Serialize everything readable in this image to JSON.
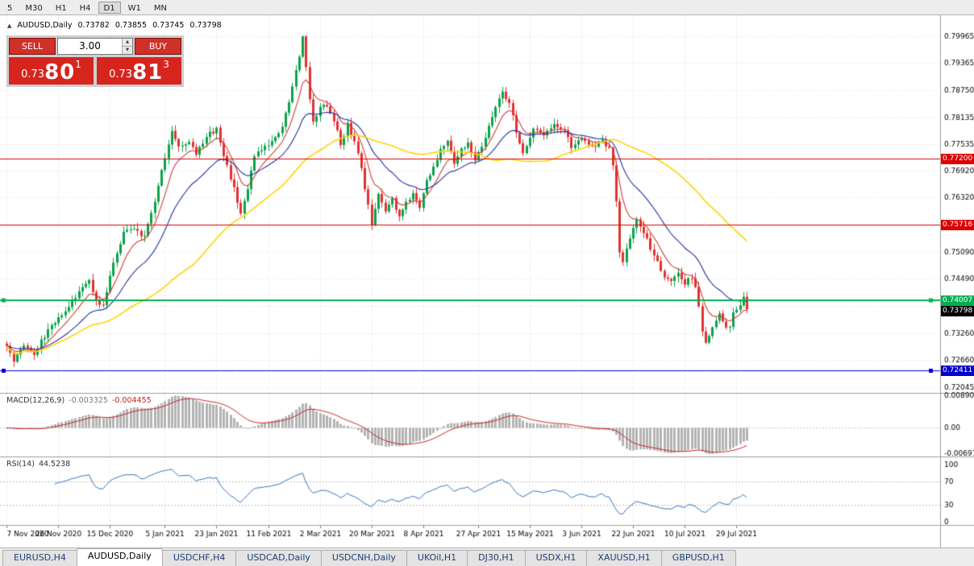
{
  "toolbar": {
    "timeframes": [
      "5",
      "M30",
      "H1",
      "H4",
      "D1",
      "W1",
      "MN"
    ],
    "active": "D1"
  },
  "header": {
    "symbol": "AUDUSD,Daily",
    "open": "0.73782",
    "high": "0.73855",
    "low": "0.73745",
    "close": "0.73798"
  },
  "trade_panel": {
    "sell_label": "SELL",
    "buy_label": "BUY",
    "volume": "3.00",
    "sell_price": {
      "prefix": "0.73",
      "pips": "80",
      "sup": "1"
    },
    "buy_price": {
      "prefix": "0.73",
      "pips": "81",
      "sup": "3"
    }
  },
  "indicators": {
    "macd": {
      "label": "MACD(12,26,9)",
      "value1": "-0.003325",
      "value2": "-0.004455",
      "axis_labels": [
        "0.00890",
        "0.00",
        "-0.00697"
      ]
    },
    "rsi": {
      "label": "RSI(14)",
      "value": "44.5238",
      "axis_labels": [
        "100",
        "70",
        "30",
        "0"
      ],
      "levels": [
        70,
        30
      ]
    }
  },
  "tabs": [
    {
      "label": "EURUSD,H4"
    },
    {
      "label": "AUDUSD,Daily",
      "active": true
    },
    {
      "label": "USDCHF,H4"
    },
    {
      "label": "USDCAD,Daily"
    },
    {
      "label": "USDCNH,Daily"
    },
    {
      "label": "UKOil,H1"
    },
    {
      "label": "DJ30,H1"
    },
    {
      "label": "USDX,H1"
    },
    {
      "label": "XAUUSD,H1"
    },
    {
      "label": "GBPUSD,H1"
    }
  ],
  "chart_data": {
    "type": "candlestick",
    "symbol": "AUDUSD",
    "timeframe": "Daily",
    "num_candles": 216,
    "last_close": 0.73798,
    "y_axis_labels": [
      "0.79965",
      "0.79365",
      "0.78750",
      "0.78135",
      "0.77535",
      "0.76920",
      "0.76320",
      "0.75705",
      "0.75090",
      "0.74490",
      "0.73875",
      "0.73260",
      "0.72660",
      "0.72045"
    ],
    "x_axis": [
      {
        "i": 0,
        "label": "7 Nov 2020"
      },
      {
        "i": 15,
        "label": "26 Nov 2020"
      },
      {
        "i": 30,
        "label": "15 Dec 2020"
      },
      {
        "i": 46,
        "label": "5 Jan 2021"
      },
      {
        "i": 61,
        "label": "23 Jan 2021"
      },
      {
        "i": 76,
        "label": "11 Feb 2021"
      },
      {
        "i": 91,
        "label": "2 Mar 2021"
      },
      {
        "i": 106,
        "label": "20 Mar 2021"
      },
      {
        "i": 121,
        "label": "8 Apr 2021"
      },
      {
        "i": 137,
        "label": "27 Apr 2021"
      },
      {
        "i": 152,
        "label": "15 May 2021"
      },
      {
        "i": 167,
        "label": "3 Jun 2021"
      },
      {
        "i": 182,
        "label": "22 Jun 2021"
      },
      {
        "i": 197,
        "label": "10 Jul 2021"
      },
      {
        "i": 212,
        "label": "29 Jul 2021"
      }
    ],
    "hlines": [
      {
        "value": 0.772,
        "label": "0.77200",
        "color": "#dd0000",
        "width": 1,
        "handles": false
      },
      {
        "value": 0.75716,
        "label": "0.75716",
        "color": "#dd0000",
        "width": 1,
        "handles": false
      },
      {
        "value": 0.74007,
        "label": "0.74007",
        "color": "#00b050",
        "width": 2,
        "handles": true
      },
      {
        "value": 0.72411,
        "label": "0.72411",
        "color": "#0000cc",
        "width": 1,
        "handles": true
      }
    ],
    "current_price": {
      "value": 0.73798,
      "label": "0.73798",
      "color": "#000000"
    },
    "moving_averages": [
      {
        "type": "ema",
        "period": 8,
        "color": "#d23b32"
      },
      {
        "type": "ema",
        "period": 21,
        "color": "#2431a0"
      },
      {
        "type": "sma",
        "period": 55,
        "color": "#ffd400"
      }
    ],
    "colors": {
      "bull": "#0aa24a",
      "bear": "#e03230",
      "macd_hist": "#b3b3b3",
      "macd_signal": "#cc2222",
      "rsi_line": "#3273b8"
    },
    "price_anchors": [
      [
        0,
        0.7292
      ],
      [
        2,
        0.7263
      ],
      [
        5,
        0.7298
      ],
      [
        8,
        0.7281
      ],
      [
        12,
        0.7332
      ],
      [
        15,
        0.7358
      ],
      [
        18,
        0.7388
      ],
      [
        21,
        0.7416
      ],
      [
        24,
        0.7446
      ],
      [
        26,
        0.7398
      ],
      [
        28,
        0.739
      ],
      [
        31,
        0.7482
      ],
      [
        34,
        0.7552
      ],
      [
        37,
        0.7558
      ],
      [
        40,
        0.7545
      ],
      [
        43,
        0.7625
      ],
      [
        46,
        0.7722
      ],
      [
        48,
        0.7786
      ],
      [
        50,
        0.7744
      ],
      [
        53,
        0.7762
      ],
      [
        55,
        0.7728
      ],
      [
        58,
        0.7772
      ],
      [
        61,
        0.7786
      ],
      [
        63,
        0.7724
      ],
      [
        66,
        0.7652
      ],
      [
        68,
        0.7598
      ],
      [
        70,
        0.7655
      ],
      [
        72,
        0.773
      ],
      [
        75,
        0.7748
      ],
      [
        78,
        0.7768
      ],
      [
        80,
        0.7794
      ],
      [
        83,
        0.788
      ],
      [
        85,
        0.7952
      ],
      [
        86,
        0.7994
      ],
      [
        88,
        0.7858
      ],
      [
        89,
        0.78
      ],
      [
        91,
        0.7842
      ],
      [
        93,
        0.7838
      ],
      [
        95,
        0.7806
      ],
      [
        97,
        0.7752
      ],
      [
        99,
        0.7796
      ],
      [
        101,
        0.776
      ],
      [
        103,
        0.7694
      ],
      [
        105,
        0.7616
      ],
      [
        106,
        0.757
      ],
      [
        108,
        0.7642
      ],
      [
        110,
        0.7598
      ],
      [
        112,
        0.7626
      ],
      [
        114,
        0.7592
      ],
      [
        116,
        0.7618
      ],
      [
        118,
        0.7646
      ],
      [
        120,
        0.7614
      ],
      [
        122,
        0.7668
      ],
      [
        124,
        0.7706
      ],
      [
        126,
        0.7738
      ],
      [
        128,
        0.7758
      ],
      [
        130,
        0.7712
      ],
      [
        132,
        0.7742
      ],
      [
        134,
        0.7756
      ],
      [
        136,
        0.7716
      ],
      [
        138,
        0.775
      ],
      [
        140,
        0.779
      ],
      [
        142,
        0.7832
      ],
      [
        144,
        0.787
      ],
      [
        146,
        0.7842
      ],
      [
        148,
        0.7784
      ],
      [
        150,
        0.7734
      ],
      [
        153,
        0.779
      ],
      [
        156,
        0.777
      ],
      [
        159,
        0.78
      ],
      [
        162,
        0.7786
      ],
      [
        164,
        0.7748
      ],
      [
        167,
        0.7768
      ],
      [
        170,
        0.7744
      ],
      [
        173,
        0.7764
      ],
      [
        175,
        0.7742
      ],
      [
        176,
        0.77
      ],
      [
        177,
        0.7622
      ],
      [
        178,
        0.7508
      ],
      [
        179,
        0.7485
      ],
      [
        181,
        0.7542
      ],
      [
        183,
        0.7578
      ],
      [
        185,
        0.7552
      ],
      [
        187,
        0.7518
      ],
      [
        189,
        0.7484
      ],
      [
        191,
        0.7454
      ],
      [
        193,
        0.7442
      ],
      [
        195,
        0.7458
      ],
      [
        197,
        0.744
      ],
      [
        199,
        0.745
      ],
      [
        200,
        0.7428
      ],
      [
        201,
        0.739
      ],
      [
        202,
        0.7332
      ],
      [
        203,
        0.73
      ],
      [
        205,
        0.7344
      ],
      [
        207,
        0.737
      ],
      [
        209,
        0.734
      ],
      [
        210,
        0.7336
      ],
      [
        211,
        0.737
      ],
      [
        213,
        0.7394
      ],
      [
        214,
        0.7408
      ],
      [
        215,
        0.73798
      ]
    ]
  }
}
